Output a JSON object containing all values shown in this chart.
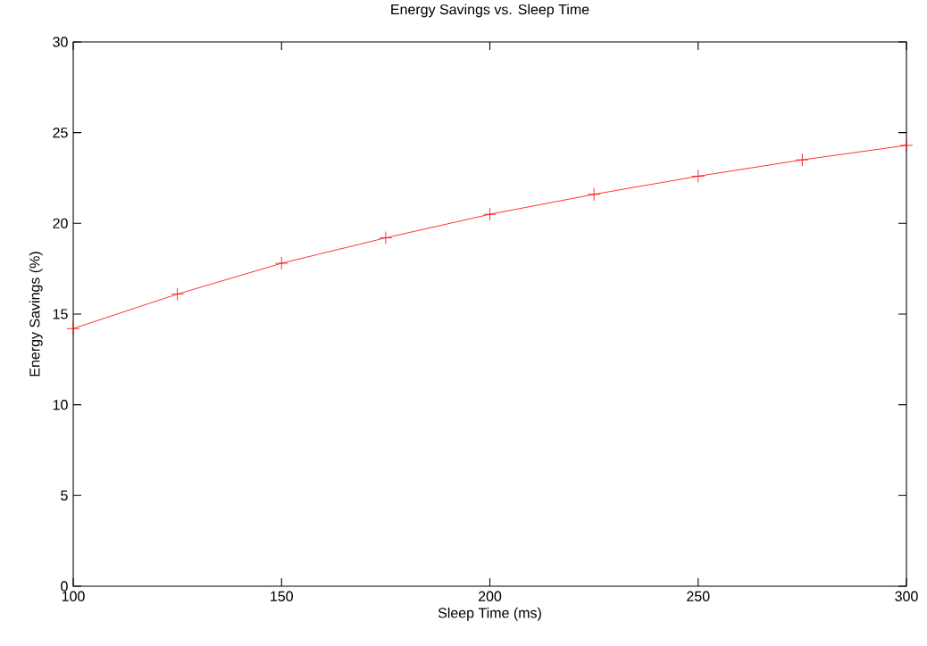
{
  "chart_data": {
    "type": "line",
    "title": "Energy Savings vs. Sleep Time",
    "xlabel": "Sleep Time (ms)",
    "ylabel": "Energy Savings (%)",
    "x": [
      100,
      125,
      150,
      175,
      200,
      225,
      250,
      275,
      300
    ],
    "series": [
      {
        "color": "#ff0000",
        "values": [
          14.2,
          16.1,
          17.8,
          19.2,
          20.5,
          21.6,
          22.6,
          23.5,
          24.3
        ]
      }
    ],
    "xlim": [
      100,
      300
    ],
    "ylim": [
      0,
      30
    ],
    "xticks": [
      100,
      150,
      200,
      250,
      300
    ],
    "yticks": [
      0,
      5,
      10,
      15,
      20,
      25,
      30
    ],
    "marker": "cross",
    "line_style": "solid"
  }
}
